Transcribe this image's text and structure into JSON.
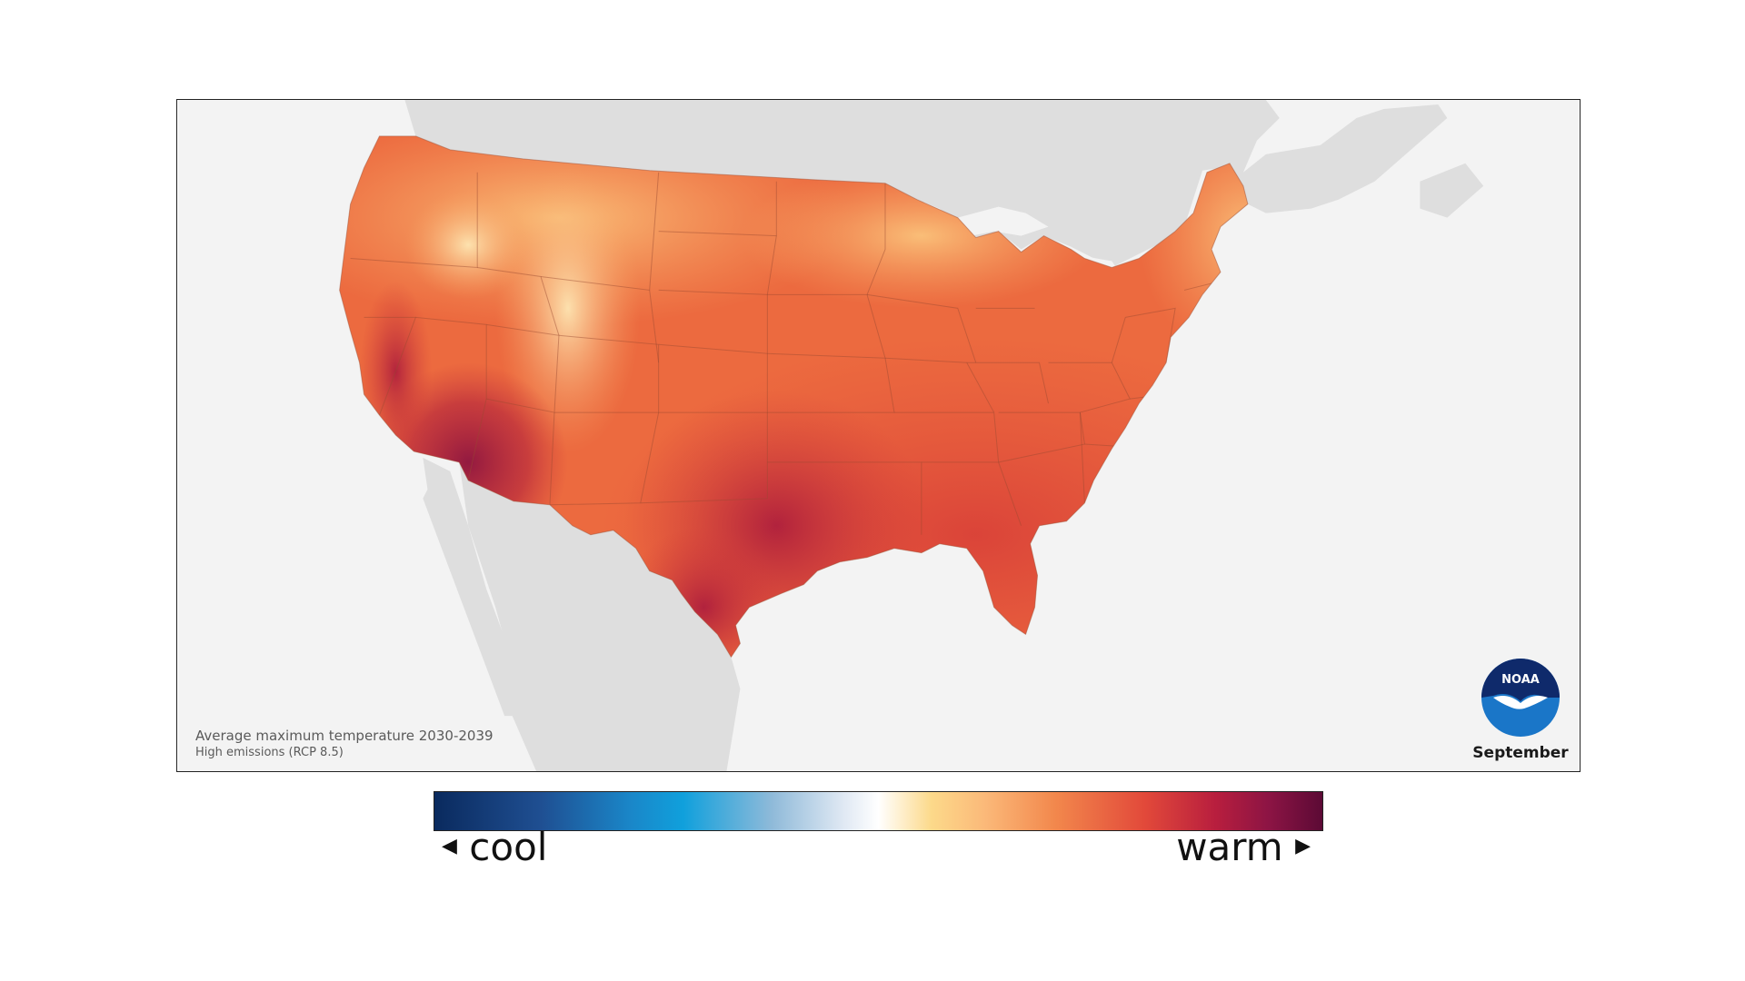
{
  "map": {
    "caption_title": "Average maximum temperature 2030-2039",
    "caption_scenario": "High emissions (RCP 8.5)",
    "month": "September",
    "logo_text": "NOAA",
    "colors": {
      "ocean": "#f3f3f3",
      "neighbor_land": "#dedede",
      "land_base": "#ec6a3f",
      "state_lines": "#9a4a30"
    }
  },
  "legend": {
    "cool_label": "cool",
    "warm_label": "warm",
    "cool_arrow_icon": "triangle-left-icon",
    "warm_arrow_icon": "triangle-right-icon"
  }
}
